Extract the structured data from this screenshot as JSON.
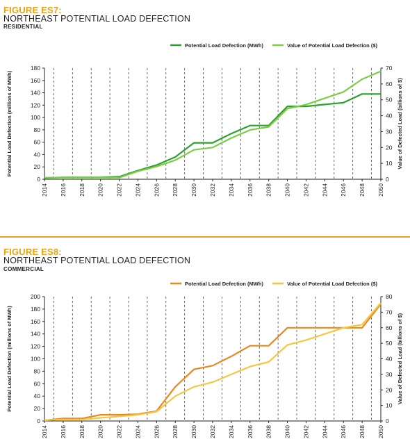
{
  "figures": [
    {
      "label": "FIGURE ES7:",
      "title": "NORTHEAST POTENTIAL LOAD DEFECTION",
      "subtitle": "RESIDENTIAL",
      "label_color": "#e8a21a",
      "rule_color": "#e8a21a"
    },
    {
      "label": "FIGURE ES8:",
      "title": "NORTHEAST POTENTIAL LOAD DEFECTION",
      "subtitle": "COMMERCIAL",
      "label_color": "#e8a21a",
      "rule_color": "#e8a21a"
    }
  ],
  "chart_data": [
    {
      "type": "line",
      "x": [
        2014,
        2016,
        2018,
        2020,
        2022,
        2024,
        2026,
        2028,
        2030,
        2032,
        2034,
        2036,
        2038,
        2040,
        2042,
        2044,
        2046,
        2048,
        2050
      ],
      "x_ticks": [
        "2014",
        "2016",
        "2018",
        "2020",
        "2022",
        "2024",
        "2026",
        "2028",
        "2030",
        "2032",
        "2034",
        "2036",
        "2038",
        "2040",
        "2042",
        "2044",
        "2046",
        "2048",
        "2050"
      ],
      "dashed_gridlines_x": [
        2015,
        2017,
        2019,
        2021,
        2023,
        2025,
        2027,
        2029,
        2031,
        2033,
        2035,
        2037,
        2039,
        2041,
        2043,
        2045,
        2047,
        2049
      ],
      "series": [
        {
          "name": "Potential Load Defection (MWh)",
          "axis": "left",
          "color": "#2aa12a",
          "values": [
            2,
            3,
            3,
            3,
            4,
            14,
            23,
            36,
            59,
            59,
            74,
            87,
            87,
            118,
            118,
            121,
            124,
            138,
            138
          ]
        },
        {
          "name": "Value of Potential Load Defection ($)",
          "axis": "right",
          "color": "#7ccc45",
          "values": [
            1,
            1,
            1,
            1,
            1,
            5,
            8,
            12,
            18.5,
            20,
            26,
            31,
            33,
            44.5,
            47,
            51,
            55,
            63,
            68
          ]
        }
      ],
      "ylabel": "Potential Load Defection (millions of MWh)",
      "ylabel_right": "Value of Defected Load (billions of $)",
      "ylim": [
        0,
        180
      ],
      "yticks": [
        0,
        20,
        40,
        60,
        80,
        100,
        120,
        140,
        160,
        180
      ],
      "ylim_right": [
        0,
        70
      ],
      "yticks_right": [
        0,
        10,
        20,
        30,
        40,
        50,
        60,
        70
      ],
      "legend_position": "top-right",
      "grid": "dashed vertical"
    },
    {
      "type": "line",
      "x": [
        2014,
        2016,
        2018,
        2020,
        2022,
        2024,
        2026,
        2028,
        2030,
        2032,
        2034,
        2036,
        2038,
        2040,
        2042,
        2044,
        2046,
        2048,
        2050
      ],
      "x_ticks": [
        "2014",
        "2016",
        "2018",
        "2020",
        "2022",
        "2024",
        "2026",
        "2028",
        "2030",
        "2032",
        "2034",
        "2036",
        "2038",
        "2040",
        "2042",
        "2044",
        "2046",
        "2048",
        "2050"
      ],
      "dashed_gridlines_x": [
        2015,
        2017,
        2019,
        2021,
        2023,
        2025,
        2027,
        2029,
        2031,
        2033,
        2035,
        2037,
        2039,
        2041,
        2043,
        2045,
        2047,
        2049
      ],
      "series": [
        {
          "name": "Potential Load Defection (MWh)",
          "axis": "left",
          "color": "#e8891e",
          "values": [
            1,
            4,
            4,
            10,
            10,
            11,
            16,
            55,
            83,
            89,
            104,
            121,
            121,
            150,
            150,
            150,
            150,
            150,
            188
          ]
        },
        {
          "name": "Value of Potential Load Defection ($)",
          "axis": "right",
          "color": "#f7c544",
          "values": [
            0.5,
            1,
            1,
            2,
            3,
            4,
            6,
            16,
            22,
            25,
            30,
            35,
            38,
            49,
            52,
            56,
            60,
            62,
            76
          ]
        }
      ],
      "ylabel": "Potential Load Defection (millions of MWh)",
      "ylabel_right": "Value of Defected Load (billions of $)",
      "ylim": [
        0,
        200
      ],
      "yticks": [
        0,
        20,
        40,
        60,
        80,
        100,
        120,
        140,
        160,
        180,
        200
      ],
      "ylim_right": [
        0,
        80
      ],
      "yticks_right": [
        0,
        10,
        20,
        30,
        40,
        50,
        60,
        70,
        80
      ],
      "legend_position": "top-right",
      "grid": "dashed vertical"
    }
  ]
}
